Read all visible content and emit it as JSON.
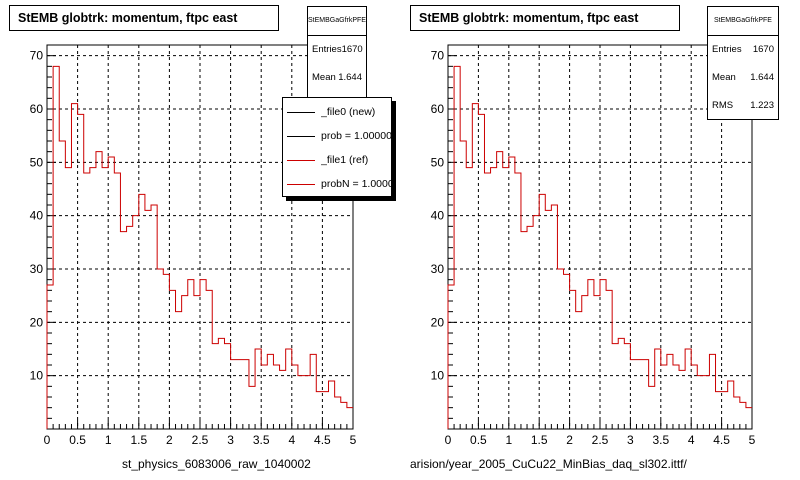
{
  "chart_data": [
    {
      "type": "histogram",
      "title": "StEMB globtrk: momentum, ftpc east",
      "xlabel": "st_physics_6083006_raw_1040002",
      "xlim": [
        0,
        5
      ],
      "ylim": [
        0,
        72
      ],
      "xticks": [
        0,
        0.5,
        1,
        1.5,
        2,
        2.5,
        3,
        3.5,
        4,
        4.5,
        5
      ],
      "xtick_labels": [
        "0",
        "0.5",
        "1",
        "1.5",
        "2",
        "2.5",
        "3",
        "3.5",
        "4",
        "4.5",
        "5"
      ],
      "yticks": [
        10,
        20,
        30,
        40,
        50,
        60,
        70
      ],
      "ytick_labels": [
        "10",
        "20",
        "30",
        "40",
        "50",
        "60",
        "70"
      ],
      "grid": true,
      "bin_width": 0.1,
      "series": [
        {
          "name": "_file1 (ref)",
          "color": "#cc0000",
          "values": [
            27,
            68,
            54,
            49,
            61,
            59,
            48,
            49,
            52,
            49,
            51,
            48,
            37,
            38,
            40,
            44,
            41,
            42,
            30,
            29,
            26,
            22,
            25,
            28,
            25,
            28,
            26,
            16,
            17,
            16,
            13,
            13,
            13,
            8,
            15,
            12,
            14,
            12,
            11,
            15,
            12,
            10,
            10,
            14,
            7,
            7,
            9,
            6,
            5,
            4
          ]
        }
      ],
      "stats": {
        "header": "StEMBGaGfrkPFE",
        "entries": "1670",
        "mean": "1.644",
        "rms": "1.223"
      },
      "legend": [
        {
          "label": "_file0 (new)",
          "color": "#000000"
        },
        {
          "label": "prob = 1.000000",
          "color": "#000000"
        },
        {
          "label": "_file1 (ref)",
          "color": "#cc0000"
        },
        {
          "label": "probN = 1.000000",
          "color": "#cc0000"
        }
      ]
    },
    {
      "type": "histogram",
      "title": "StEMB globtrk: momentum, ftpc east",
      "xlabel": "arision/year_2005_CuCu22_MinBias_daq_sl302.ittf/",
      "xlim": [
        0,
        5
      ],
      "ylim": [
        0,
        72
      ],
      "xticks": [
        0,
        0.5,
        1,
        1.5,
        2,
        2.5,
        3,
        3.5,
        4,
        4.5,
        5
      ],
      "xtick_labels": [
        "0",
        "0.5",
        "1",
        "1.5",
        "2",
        "2.5",
        "3",
        "3.5",
        "4",
        "4.5",
        "5"
      ],
      "yticks": [
        10,
        20,
        30,
        40,
        50,
        60,
        70
      ],
      "ytick_labels": [
        "10",
        "20",
        "30",
        "40",
        "50",
        "60",
        "70"
      ],
      "grid": true,
      "bin_width": 0.1,
      "series": [
        {
          "color": "#cc0000",
          "values": [
            27,
            68,
            54,
            49,
            61,
            59,
            48,
            49,
            52,
            49,
            51,
            48,
            37,
            38,
            40,
            44,
            41,
            42,
            30,
            29,
            26,
            22,
            25,
            28,
            25,
            28,
            26,
            16,
            17,
            16,
            13,
            13,
            13,
            8,
            15,
            12,
            14,
            12,
            11,
            15,
            12,
            10,
            10,
            14,
            7,
            7,
            9,
            6,
            5,
            4
          ]
        }
      ],
      "stats": {
        "header": "StEMBGaGfrkPFE",
        "entries": "1670",
        "mean": "1.644",
        "rms": "1.223"
      }
    }
  ],
  "labels": {
    "entries": "Entries",
    "mean": "Mean",
    "rms": "RMS"
  }
}
